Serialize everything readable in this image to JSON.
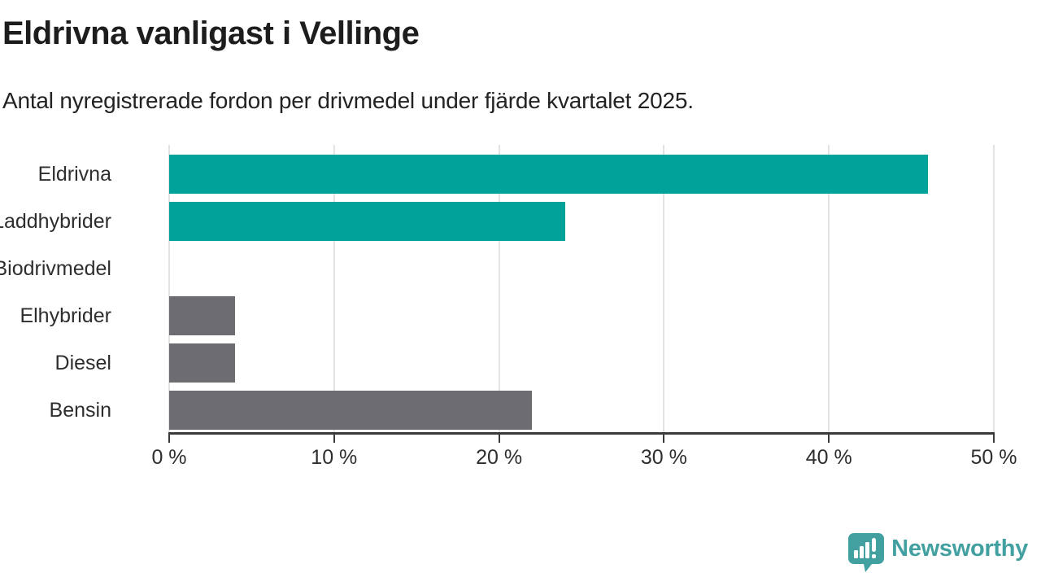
{
  "header": {
    "title": "Eldrivna vanligast i Vellinge",
    "subtitle": "Antal nyregistrerade fordon per drivmedel under fjärde kvartalet 2025."
  },
  "chart_data": {
    "type": "bar",
    "orientation": "horizontal",
    "title": "Eldrivna vanligast i Vellinge",
    "subtitle": "Antal nyregistrerade fordon per drivmedel under fjärde kvartalet 2025.",
    "categories": [
      "Eldrivna",
      "Laddhybrider",
      "Biodrivmedel",
      "Elhybrider",
      "Diesel",
      "Bensin"
    ],
    "values": [
      46,
      24,
      0,
      4,
      4,
      22
    ],
    "unit": "%",
    "bar_colors": [
      "#00a29a",
      "#00a29a",
      "#6d6d71",
      "#6d6d71",
      "#6d6d71",
      "#6d6d71"
    ],
    "xlabel": "",
    "ylabel": "",
    "xlim": [
      0,
      50
    ],
    "x_ticks": [
      0,
      10,
      20,
      30,
      40,
      50
    ],
    "x_tick_labels": [
      "0 %",
      "10 %",
      "20 %",
      "30 %",
      "40 %",
      "50 %"
    ],
    "grid": "vertical",
    "legend": "none"
  },
  "colors": {
    "accent_teal": "#00a29a",
    "neutral_gray": "#6d6d71",
    "gridline": "#e3e3e3",
    "axis": "#3a3a3a",
    "text_dark": "#1d1d1d",
    "brand_teal": "#42a0a1"
  },
  "footer": {
    "brand": "Newsworthy"
  }
}
